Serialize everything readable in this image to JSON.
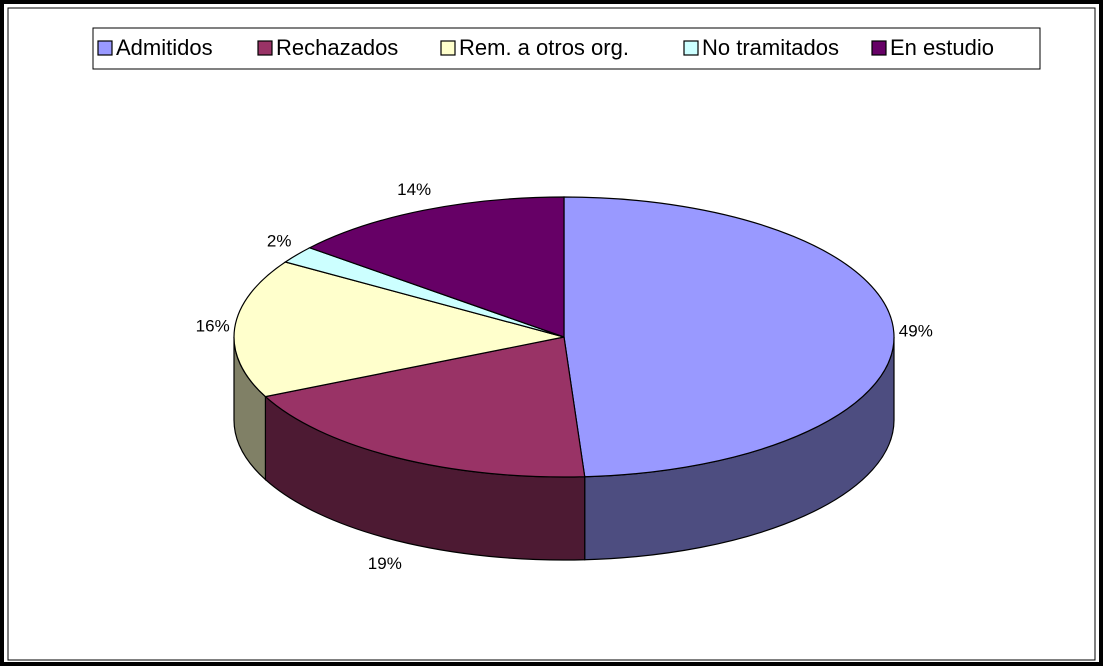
{
  "chart_data": {
    "type": "pie3d",
    "categories": [
      "Admitidos",
      "Rechazados",
      "Rem. a otros org.",
      "No tramitados",
      "En estudio"
    ],
    "values": [
      49,
      19,
      16,
      2,
      14
    ],
    "value_labels": [
      "49%",
      "19%",
      "16%",
      "2%",
      "14%"
    ],
    "colors": [
      "#9999ff",
      "#993366",
      "#ffffcc",
      "#ccffff",
      "#660066"
    ],
    "legend": "top"
  }
}
